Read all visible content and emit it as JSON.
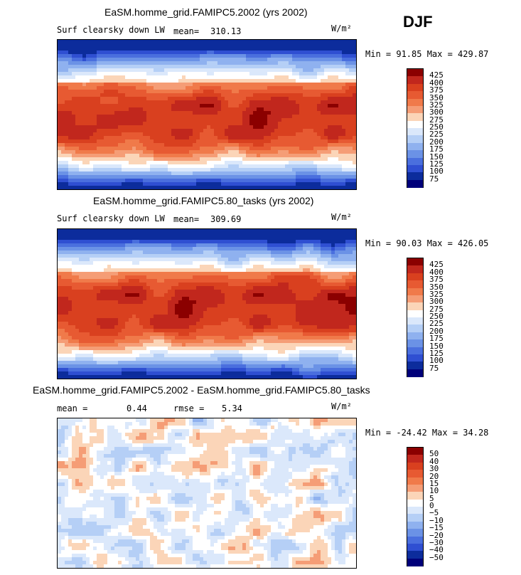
{
  "season": "DJF",
  "chart_data": [
    {
      "type": "heatmap",
      "title": "EaSM.homme_grid.FAMIPC5.2002 (yrs 2002)",
      "variable": "Surf clearsky down LW",
      "mean_label": "mean=",
      "mean": "310.13",
      "units": "W/m²",
      "minmax": "Min =  91.85 Max = 429.87",
      "levels": [
        "425",
        "400",
        "375",
        "350",
        "325",
        "300",
        "275",
        "250",
        "225",
        "200",
        "175",
        "150",
        "125",
        "100",
        "75"
      ],
      "colors": [
        "#8b0000",
        "#c1271d",
        "#d9401f",
        "#e75a32",
        "#f07a4a",
        "#f59d76",
        "#fbd5b8",
        "#ffffff",
        "#dbe8fb",
        "#b5cff6",
        "#8fb1ef",
        "#6b92e6",
        "#4a6fde",
        "#2f4fd2",
        "#0c2c9c",
        "#00007a"
      ],
      "field": "abs"
    },
    {
      "type": "heatmap",
      "title": "EaSM.homme_grid.FAMIPC5.80_tasks (yrs 2002)",
      "variable": "Surf clearsky down LW",
      "mean_label": "mean=",
      "mean": "309.69",
      "units": "W/m²",
      "minmax": "Min =  90.03 Max = 426.05",
      "levels": [
        "425",
        "400",
        "375",
        "350",
        "325",
        "300",
        "275",
        "250",
        "225",
        "200",
        "175",
        "150",
        "125",
        "100",
        "75"
      ],
      "colors": [
        "#8b0000",
        "#c1271d",
        "#d9401f",
        "#e75a32",
        "#f07a4a",
        "#f59d76",
        "#fbd5b8",
        "#ffffff",
        "#dbe8fb",
        "#b5cff6",
        "#8fb1ef",
        "#6b92e6",
        "#4a6fde",
        "#2f4fd2",
        "#0c2c9c",
        "#00007a"
      ],
      "field": "abs"
    },
    {
      "type": "heatmap",
      "title": "EaSM.homme_grid.FAMIPC5.2002 - EaSM.homme_grid.FAMIPC5.80_tasks",
      "mean_label": "mean =",
      "mean": "0.44",
      "rmse_label": "rmse =",
      "rmse": "5.34",
      "units": "W/m²",
      "minmax": "Min = -24.42 Max =  34.28",
      "levels": [
        "50",
        "40",
        "30",
        "20",
        "15",
        "10",
        "5",
        "0",
        "−5",
        "−10",
        "−15",
        "−20",
        "−30",
        "−40",
        "−50"
      ],
      "colors": [
        "#8b0000",
        "#c1271d",
        "#d9401f",
        "#e75a32",
        "#f07a4a",
        "#f59d76",
        "#fbd5b8",
        "#ffffff",
        "#dbe8fb",
        "#b5cff6",
        "#8fb1ef",
        "#6b92e6",
        "#4a6fde",
        "#2f4fd2",
        "#0c2c9c",
        "#00007a"
      ],
      "field": "diff"
    }
  ]
}
